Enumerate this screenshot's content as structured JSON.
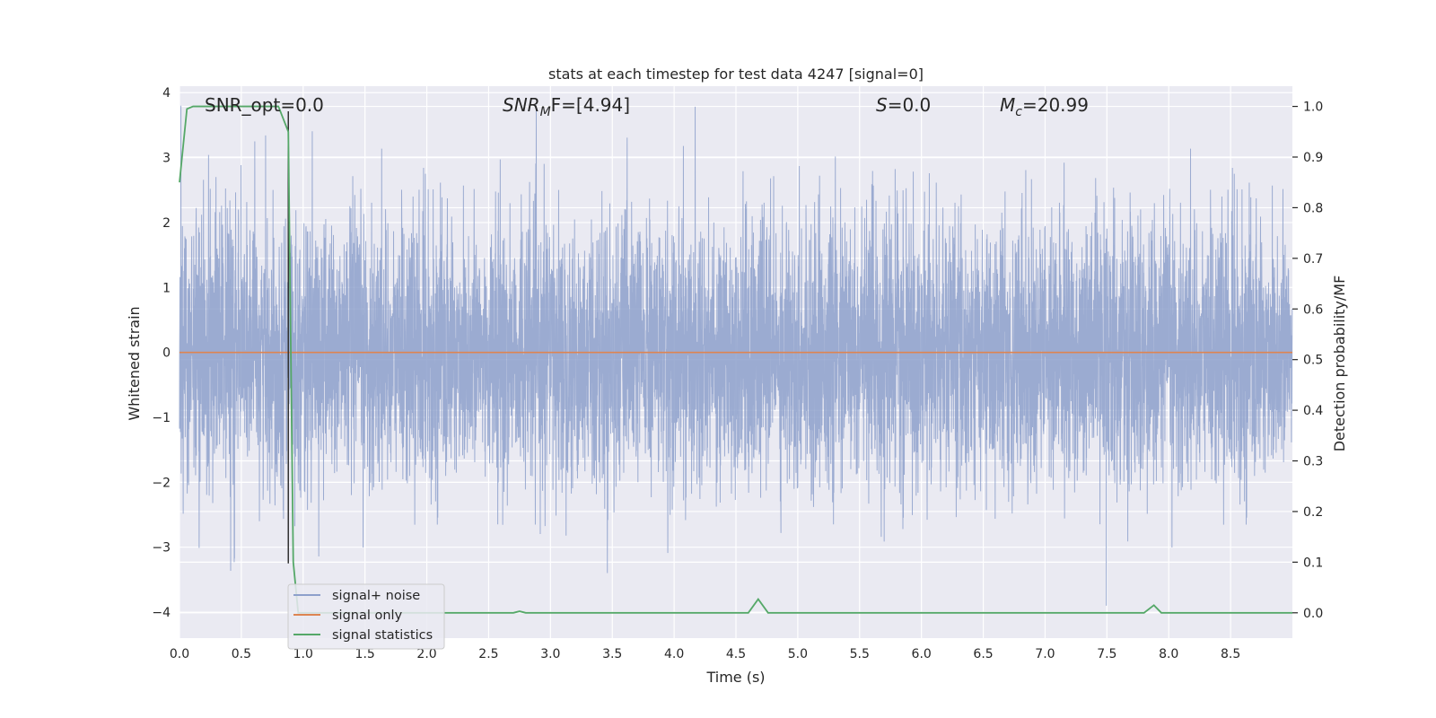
{
  "chart_data": {
    "type": "line",
    "title": "stats at each timestep for test data 4247 [signal=0]",
    "xlabel": "Time (s)",
    "ylabel": "Whitened strain",
    "y2label": "Detection probability/MF",
    "xlim": [
      0.0,
      9.0
    ],
    "ylim": [
      -4.4,
      4.1
    ],
    "y2lim": [
      -0.05,
      1.04
    ],
    "x_ticks": [
      "0.0",
      "0.5",
      "1.0",
      "1.5",
      "2.0",
      "2.5",
      "3.0",
      "3.5",
      "4.0",
      "4.5",
      "5.0",
      "5.5",
      "6.0",
      "6.5",
      "7.0",
      "7.5",
      "8.0",
      "8.5"
    ],
    "y_ticks": [
      "4",
      "3",
      "2",
      "1",
      "0",
      "−1",
      "−2",
      "−3",
      "−4"
    ],
    "y2_ticks": [
      "1.0",
      "0.9",
      "0.8",
      "0.7",
      "0.6",
      "0.5",
      "0.4",
      "0.3",
      "0.2",
      "0.1",
      "0.0"
    ],
    "annotations": {
      "snr_opt": "SNR_opt=0.0",
      "snr_mf_name": "SNR",
      "snr_mf_sub": "M",
      "snr_mf_rest": "F=[4.94]",
      "s_name": "S",
      "s_rest": "=0.0",
      "mc_name": "M",
      "mc_sub": "c",
      "mc_rest": "=20.99"
    },
    "series": [
      {
        "name": "signal+ noise",
        "axis": "left",
        "color": "#8da0cb",
        "noise_std": 1.0,
        "duration_s": 9.0
      },
      {
        "name": "signal only",
        "axis": "left",
        "color": "#dd8452",
        "x": [
          0.0,
          9.0
        ],
        "y": [
          0.0,
          0.0
        ]
      },
      {
        "name": "signal statistics",
        "axis": "right",
        "color": "#55a868",
        "x": [
          0.0,
          0.06,
          0.11,
          0.8,
          0.88,
          0.92,
          0.96,
          1.0,
          2.7,
          2.75,
          2.8,
          4.6,
          4.68,
          4.76,
          7.8,
          7.88,
          7.94,
          9.0
        ],
        "y": [
          0.85,
          0.995,
          1.0,
          1.0,
          0.95,
          0.1,
          0.0,
          0.0,
          0.0,
          0.003,
          0.0,
          0.0,
          0.027,
          0.0,
          0.0,
          0.015,
          0.0,
          0.0
        ]
      }
    ],
    "vertical_marker": {
      "x": 0.88,
      "color": "#333333"
    },
    "grid": true,
    "legend_position": "lower-left"
  }
}
